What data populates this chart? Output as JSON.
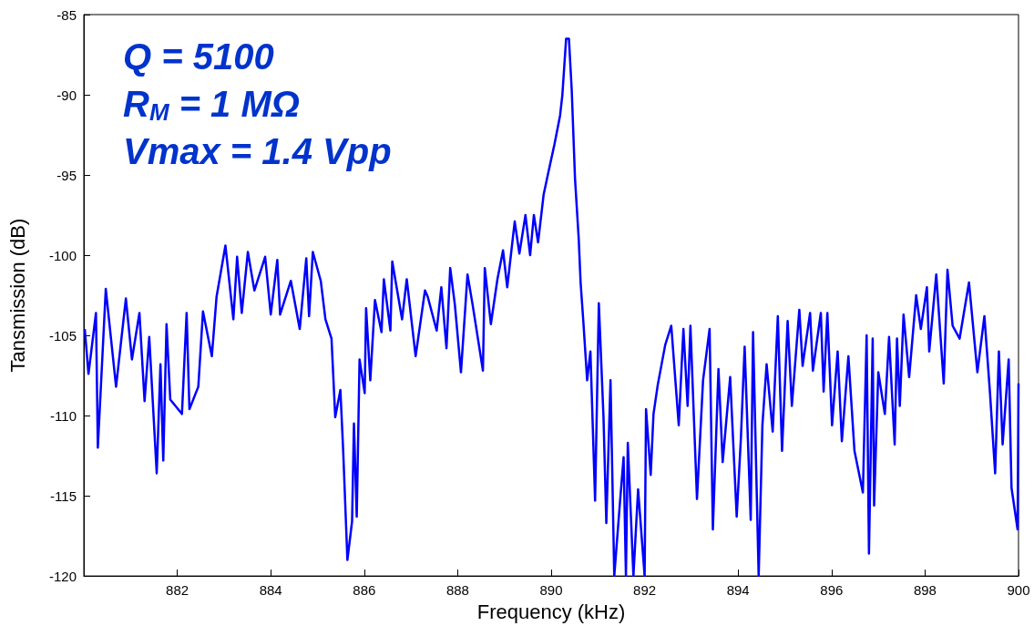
{
  "chart_data": {
    "type": "line",
    "xlabel": "Frequency (kHz)",
    "ylabel": "Tansmission (dB)",
    "annotations": [
      "Q = 5100",
      "R$_{M}$ = 1 MΩ",
      "Vmax = 1.4 Vpp"
    ],
    "xlim": [
      880,
      900
    ],
    "xticks": [
      882,
      884,
      886,
      888,
      890,
      892,
      894,
      896,
      898,
      900
    ],
    "ylim": [
      -120,
      -85
    ],
    "yticks": [
      -120,
      -115,
      -110,
      -105,
      -100,
      -95,
      -90,
      -85
    ],
    "marker": "none",
    "line_style": "solid",
    "series": [
      {
        "color": "#0000ff",
        "x": [
          880.02,
          880.1,
          880.26,
          880.3,
          880.47,
          880.69,
          880.9,
          881.03,
          881.19,
          881.3,
          881.4,
          881.56,
          881.64,
          881.7,
          881.77,
          881.85,
          882.1,
          882.2,
          882.26,
          882.45,
          882.55,
          882.74,
          882.84,
          883.03,
          883.2,
          883.28,
          883.38,
          883.51,
          883.65,
          883.88,
          884.0,
          884.14,
          884.2,
          884.43,
          884.62,
          884.76,
          884.82,
          884.9,
          885.07,
          885.17,
          885.3,
          885.38,
          885.49,
          885.55,
          885.64,
          885.74,
          885.78,
          885.84,
          885.9,
          886.01,
          886.04,
          886.13,
          886.23,
          886.37,
          886.42,
          886.56,
          886.6,
          886.81,
          886.91,
          887.1,
          887.3,
          887.36,
          887.55,
          887.65,
          887.76,
          887.84,
          887.94,
          888.07,
          888.21,
          888.32,
          888.54,
          888.58,
          888.71,
          888.85,
          888.97,
          889.06,
          889.22,
          889.32,
          889.45,
          889.55,
          889.63,
          889.72,
          889.84,
          889.95,
          890.07,
          890.19,
          890.24,
          890.32,
          890.38,
          890.44,
          890.51,
          890.59,
          890.63,
          890.69,
          890.77,
          890.84,
          890.94,
          891.02,
          891.12,
          891.18,
          891.27,
          891.35,
          891.47,
          891.55,
          891.6,
          891.64,
          891.76,
          891.86,
          892.0,
          892.03,
          892.13,
          892.19,
          892.28,
          892.44,
          892.57,
          892.73,
          892.83,
          892.92,
          892.98,
          893.12,
          893.25,
          893.39,
          893.46,
          893.58,
          893.67,
          893.83,
          893.97,
          894.06,
          894.14,
          894.27,
          894.32,
          894.44,
          894.52,
          894.61,
          894.74,
          894.85,
          894.94,
          895.06,
          895.15,
          895.31,
          895.38,
          895.54,
          895.6,
          895.77,
          895.83,
          895.91,
          896.01,
          896.13,
          896.22,
          896.36,
          896.49,
          896.67,
          896.75,
          896.8,
          896.88,
          896.91,
          897.0,
          897.14,
          897.23,
          897.35,
          897.4,
          897.46,
          897.54,
          897.66,
          897.81,
          897.91,
          898.04,
          898.09,
          898.24,
          898.4,
          898.48,
          898.59,
          898.74,
          898.94,
          899.12,
          899.27,
          899.39,
          899.5,
          899.58,
          899.66,
          899.79,
          899.85,
          899.98,
          900.0
        ],
        "values": [
          -104.6,
          -107.4,
          -103.6,
          -112,
          -102.1,
          -108.2,
          -102.7,
          -106.5,
          -103.6,
          -109.1,
          -105.1,
          -113.6,
          -106.8,
          -112.8,
          -104.3,
          -109,
          -109.9,
          -103.6,
          -109.6,
          -108.2,
          -103.5,
          -106.3,
          -102.6,
          -99.4,
          -104,
          -100.1,
          -103.6,
          -99.8,
          -102.2,
          -100.1,
          -103.7,
          -100.3,
          -103.7,
          -101.6,
          -104.6,
          -100.2,
          -103.8,
          -99.8,
          -101.6,
          -104,
          -105.2,
          -110.1,
          -108.4,
          -112.2,
          -119,
          -116.6,
          -110.5,
          -116.3,
          -106.5,
          -108.6,
          -103.3,
          -107.8,
          -102.8,
          -104.8,
          -101.5,
          -104.7,
          -100.4,
          -104,
          -101.5,
          -106.3,
          -102.2,
          -102.6,
          -104.7,
          -102,
          -105.8,
          -100.8,
          -103.1,
          -107.3,
          -101.2,
          -103.1,
          -107.2,
          -100.8,
          -104.3,
          -101.5,
          -99.7,
          -102,
          -97.9,
          -99.9,
          -97.5,
          -100,
          -97.5,
          -99.2,
          -96.2,
          -94.7,
          -93.1,
          -91.3,
          -90,
          -86.5,
          -86.5,
          -89.7,
          -95.2,
          -99,
          -101.7,
          -104.2,
          -107.8,
          -106,
          -115.3,
          -103,
          -110.1,
          -116.7,
          -107.8,
          -120,
          -115.5,
          -112.6,
          -120,
          -111.7,
          -120,
          -114.6,
          -120,
          -109.6,
          -113.7,
          -109.9,
          -108.1,
          -105.6,
          -104.4,
          -110.6,
          -104.6,
          -109.4,
          -104.4,
          -115.2,
          -107.8,
          -104.6,
          -117.1,
          -107.1,
          -112.9,
          -107.6,
          -116.3,
          -111.4,
          -105.7,
          -116.5,
          -104.8,
          -120,
          -110.6,
          -106.8,
          -111,
          -103.8,
          -112.2,
          -104.1,
          -109.4,
          -103.4,
          -106.9,
          -103.6,
          -107.2,
          -103.6,
          -108.5,
          -103.6,
          -110.6,
          -106,
          -111.6,
          -106.3,
          -112.2,
          -114.8,
          -105,
          -118.6,
          -105.2,
          -115.6,
          -107.3,
          -109.9,
          -105.1,
          -111.8,
          -105.2,
          -109.4,
          -103.7,
          -107.6,
          -102.5,
          -104.6,
          -102,
          -106,
          -101.2,
          -108,
          -100.9,
          -104.4,
          -105.2,
          -101.7,
          -107.3,
          -103.8,
          -108.6,
          -113.6,
          -106,
          -111.8,
          -106.5,
          -114.5,
          -117.1,
          -108
        ]
      }
    ]
  }
}
